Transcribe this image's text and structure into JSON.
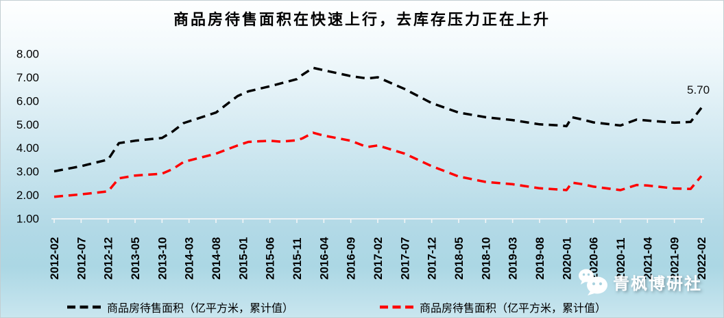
{
  "chart_data": {
    "type": "line",
    "title": "商品房待售面积在快速上行，去库存压力正在上升",
    "xlabel": "",
    "ylabel": "",
    "ylim": [
      1.0,
      8.0
    ],
    "yticks": [
      8.0,
      7.0,
      6.0,
      5.0,
      4.0,
      3.0,
      2.0,
      1.0
    ],
    "grid": false,
    "legend_position": "bottom",
    "axis_color": "#f4f6f7",
    "x_range": [
      "2012-02",
      "2022-02"
    ],
    "x_tick_interval_months": 5,
    "xticks": [
      "2012-02",
      "2012-07",
      "2012-12",
      "2013-05",
      "2013-10",
      "2014-03",
      "2014-08",
      "2015-01",
      "2015-06",
      "2015-11",
      "2016-04",
      "2016-09",
      "2017-02",
      "2017-07",
      "2017-12",
      "2018-05",
      "2018-10",
      "2019-03",
      "2019-08",
      "2020-01",
      "2020-06",
      "2020-11",
      "2021-04",
      "2021-09",
      "2022-02"
    ],
    "legend": [
      {
        "label": "商品房待售面积（亿平方米，累计值）",
        "color": "#000000"
      },
      {
        "label": "商品房待售面积（亿平方米，累计值）",
        "color": "#ff0000"
      }
    ],
    "end_label": "5.70",
    "series": [
      {
        "name": "商品房待售面积（亿平方米，累计值）",
        "color": "#000000",
        "dashed": true,
        "points": [
          [
            "2012-02",
            3.0
          ],
          [
            "2012-07",
            3.22
          ],
          [
            "2012-12",
            3.5
          ],
          [
            "2013-02",
            4.2
          ],
          [
            "2013-05",
            4.3
          ],
          [
            "2013-10",
            4.42
          ],
          [
            "2013-12",
            4.7
          ],
          [
            "2014-02",
            5.05
          ],
          [
            "2014-08",
            5.5
          ],
          [
            "2014-12",
            6.2
          ],
          [
            "2015-02",
            6.4
          ],
          [
            "2015-06",
            6.62
          ],
          [
            "2015-11",
            6.92
          ],
          [
            "2015-12",
            7.1
          ],
          [
            "2016-02",
            7.4
          ],
          [
            "2016-04",
            7.3
          ],
          [
            "2016-09",
            7.05
          ],
          [
            "2016-12",
            6.95
          ],
          [
            "2017-02",
            7.0
          ],
          [
            "2017-07",
            6.5
          ],
          [
            "2017-12",
            5.9
          ],
          [
            "2018-05",
            5.5
          ],
          [
            "2018-10",
            5.3
          ],
          [
            "2019-03",
            5.18
          ],
          [
            "2019-08",
            5.0
          ],
          [
            "2019-12",
            4.95
          ],
          [
            "2020-01",
            4.92
          ],
          [
            "2020-02",
            5.3
          ],
          [
            "2020-04",
            5.2
          ],
          [
            "2020-06",
            5.08
          ],
          [
            "2020-11",
            4.95
          ],
          [
            "2021-02",
            5.2
          ],
          [
            "2021-04",
            5.16
          ],
          [
            "2021-09",
            5.07
          ],
          [
            "2021-12",
            5.1
          ],
          [
            "2022-02",
            5.7
          ]
        ]
      },
      {
        "name": "商品房待售面积（亿平方米，累计值）",
        "color": "#ff0000",
        "dashed": true,
        "points": [
          [
            "2012-02",
            1.92
          ],
          [
            "2012-07",
            2.02
          ],
          [
            "2012-12",
            2.15
          ],
          [
            "2013-02",
            2.7
          ],
          [
            "2013-05",
            2.82
          ],
          [
            "2013-10",
            2.9
          ],
          [
            "2013-12",
            3.1
          ],
          [
            "2014-02",
            3.4
          ],
          [
            "2014-08",
            3.75
          ],
          [
            "2014-12",
            4.1
          ],
          [
            "2015-02",
            4.25
          ],
          [
            "2015-06",
            4.3
          ],
          [
            "2015-08",
            4.26
          ],
          [
            "2015-11",
            4.32
          ],
          [
            "2015-12",
            4.4
          ],
          [
            "2016-02",
            4.64
          ],
          [
            "2016-04",
            4.52
          ],
          [
            "2016-09",
            4.3
          ],
          [
            "2016-12",
            4.03
          ],
          [
            "2017-02",
            4.1
          ],
          [
            "2017-07",
            3.75
          ],
          [
            "2017-12",
            3.22
          ],
          [
            "2018-05",
            2.78
          ],
          [
            "2018-10",
            2.55
          ],
          [
            "2019-03",
            2.45
          ],
          [
            "2019-08",
            2.28
          ],
          [
            "2019-12",
            2.22
          ],
          [
            "2020-01",
            2.2
          ],
          [
            "2020-02",
            2.52
          ],
          [
            "2020-04",
            2.45
          ],
          [
            "2020-06",
            2.35
          ],
          [
            "2020-11",
            2.2
          ],
          [
            "2021-02",
            2.42
          ],
          [
            "2021-04",
            2.4
          ],
          [
            "2021-09",
            2.27
          ],
          [
            "2021-12",
            2.25
          ],
          [
            "2022-02",
            2.8
          ]
        ]
      }
    ]
  },
  "watermark": {
    "text": "青枫博研社",
    "icon": "wechat-icon"
  }
}
